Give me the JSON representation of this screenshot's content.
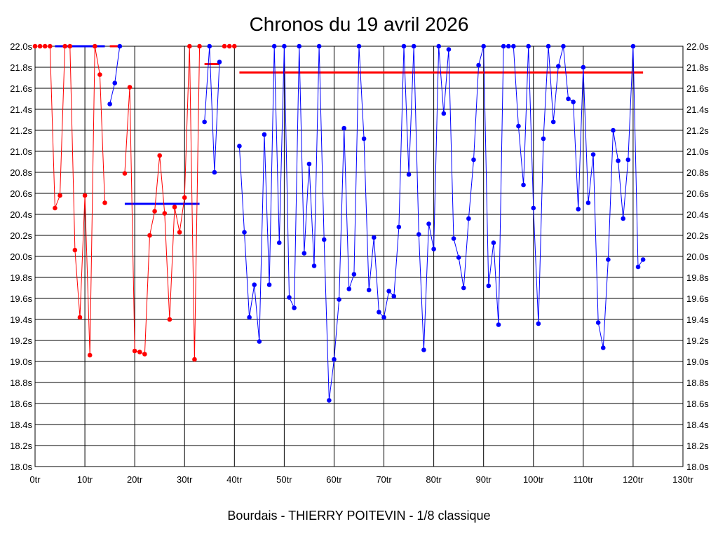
{
  "chart_data": {
    "type": "line",
    "title": "Chronos du 19 avril 2026",
    "caption": "Bourdais - THIERRY POITEVIN - 1/8 classique",
    "x_unit": "tr",
    "y_unit": "s",
    "xlim": [
      0,
      130
    ],
    "ylim": [
      18.0,
      22.0
    ],
    "x_ticks": [
      0,
      10,
      20,
      30,
      40,
      50,
      60,
      70,
      80,
      90,
      100,
      110,
      120,
      130
    ],
    "y_ticks": [
      18.0,
      18.2,
      18.4,
      18.6,
      18.8,
      19.0,
      19.2,
      19.4,
      19.6,
      19.8,
      20.0,
      20.2,
      20.4,
      20.6,
      20.8,
      21.0,
      21.2,
      21.4,
      21.6,
      21.8,
      22.0
    ],
    "grid": true,
    "y_axis_both_sides": true,
    "series": [
      {
        "color": "#ff0000",
        "segments": [
          [
            [
              0,
              22.0
            ],
            [
              1,
              22.0
            ],
            [
              2,
              22.0
            ],
            [
              3,
              22.0
            ],
            [
              4,
              20.46
            ],
            [
              5,
              20.58
            ],
            [
              6,
              22.0
            ],
            [
              7,
              22.0
            ],
            [
              8,
              20.06
            ],
            [
              9,
              19.42
            ],
            [
              10,
              20.58
            ],
            [
              11,
              19.06
            ],
            [
              12,
              22.0
            ],
            [
              13,
              21.73
            ],
            [
              14,
              20.51
            ]
          ],
          [
            [
              18,
              20.79
            ],
            [
              19,
              21.61
            ],
            [
              20,
              19.1
            ],
            [
              21,
              19.09
            ],
            [
              22,
              19.07
            ],
            [
              23,
              20.2
            ],
            [
              24,
              20.43
            ],
            [
              25,
              20.96
            ],
            [
              26,
              20.41
            ],
            [
              27,
              19.4
            ],
            [
              28,
              20.47
            ],
            [
              29,
              20.23
            ],
            [
              30,
              20.56
            ],
            [
              31,
              22.0
            ],
            [
              32,
              19.02
            ],
            [
              33,
              22.0
            ]
          ],
          [
            [
              38,
              22.0
            ],
            [
              39,
              22.0
            ],
            [
              40,
              22.0
            ]
          ]
        ]
      },
      {
        "color": "#0000ff",
        "segments": [
          [
            [
              15,
              21.45
            ],
            [
              16,
              21.65
            ],
            [
              17,
              22.0
            ]
          ],
          [
            [
              34,
              21.28
            ],
            [
              35,
              22.0
            ],
            [
              36,
              20.8
            ],
            [
              37,
              21.85
            ]
          ],
          [
            [
              41,
              21.05
            ],
            [
              42,
              20.23
            ],
            [
              43,
              19.42
            ],
            [
              44,
              19.73
            ],
            [
              45,
              19.19
            ],
            [
              46,
              21.16
            ],
            [
              47,
              19.73
            ],
            [
              48,
              22.0
            ],
            [
              49,
              20.13
            ],
            [
              50,
              22.0
            ],
            [
              51,
              19.61
            ],
            [
              52,
              19.51
            ],
            [
              53,
              22.0
            ],
            [
              54,
              20.03
            ],
            [
              55,
              20.88
            ],
            [
              56,
              19.91
            ],
            [
              57,
              22.0
            ],
            [
              58,
              20.16
            ],
            [
              59,
              18.63
            ],
            [
              60,
              19.02
            ],
            [
              61,
              19.59
            ],
            [
              62,
              21.22
            ],
            [
              63,
              19.69
            ],
            [
              64,
              19.83
            ],
            [
              65,
              22.0
            ],
            [
              66,
              21.12
            ],
            [
              67,
              19.68
            ],
            [
              68,
              20.18
            ],
            [
              69,
              19.47
            ],
            [
              70,
              19.42
            ],
            [
              71,
              19.67
            ],
            [
              72,
              19.62
            ],
            [
              73,
              20.28
            ],
            [
              74,
              22.0
            ],
            [
              75,
              20.78
            ],
            [
              76,
              22.0
            ],
            [
              77,
              20.21
            ],
            [
              78,
              19.11
            ],
            [
              79,
              20.31
            ],
            [
              80,
              20.07
            ],
            [
              81,
              22.0
            ],
            [
              82,
              21.36
            ],
            [
              83,
              21.97
            ],
            [
              84,
              20.17
            ],
            [
              85,
              19.99
            ],
            [
              86,
              19.7
            ],
            [
              87,
              20.36
            ],
            [
              88,
              20.92
            ],
            [
              89,
              21.82
            ],
            [
              90,
              22.0
            ],
            [
              91,
              19.72
            ],
            [
              92,
              20.13
            ],
            [
              93,
              19.35
            ],
            [
              94,
              22.0
            ],
            [
              95,
              22.0
            ],
            [
              96,
              22.0
            ],
            [
              97,
              21.24
            ],
            [
              98,
              20.68
            ],
            [
              99,
              22.0
            ],
            [
              100,
              20.46
            ],
            [
              101,
              19.36
            ],
            [
              102,
              21.12
            ],
            [
              103,
              22.0
            ],
            [
              104,
              21.28
            ],
            [
              105,
              21.81
            ],
            [
              106,
              22.0
            ],
            [
              107,
              21.5
            ],
            [
              108,
              21.47
            ],
            [
              109,
              20.45
            ],
            [
              110,
              21.8
            ],
            [
              111,
              20.51
            ],
            [
              112,
              20.97
            ],
            [
              113,
              19.37
            ],
            [
              114,
              19.13
            ],
            [
              115,
              19.97
            ],
            [
              116,
              21.2
            ],
            [
              117,
              20.91
            ],
            [
              118,
              20.36
            ],
            [
              119,
              20.92
            ],
            [
              120,
              22.0
            ],
            [
              121,
              19.9
            ],
            [
              122,
              19.97
            ]
          ]
        ]
      }
    ],
    "average_lines": [
      {
        "color": "#0000ff",
        "x": [
          4,
          14
        ],
        "y": 22.0
      },
      {
        "color": "#ff0000",
        "x": [
          15,
          17
        ],
        "y": 22.0
      },
      {
        "color": "#0000ff",
        "x": [
          18,
          33
        ],
        "y": 20.5
      },
      {
        "color": "#ff0000",
        "x": [
          34,
          37
        ],
        "y": 21.83
      },
      {
        "color": "#ff0000",
        "x": [
          41,
          122
        ],
        "y": 21.75
      }
    ]
  }
}
